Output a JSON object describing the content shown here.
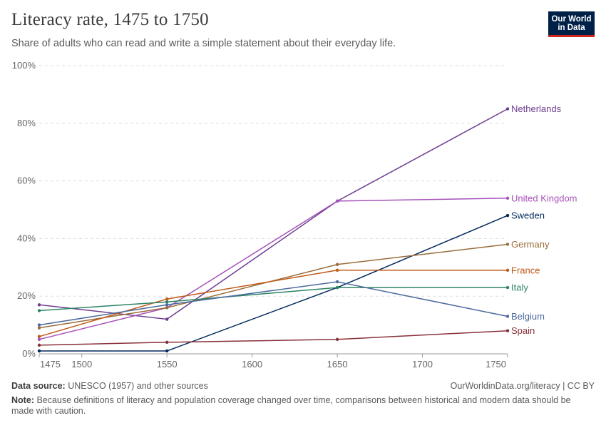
{
  "header": {
    "title": "Literacy rate, 1475 to 1750",
    "subtitle": "Share of adults who can read and write a simple statement about their everyday life.",
    "logo_line1": "Our World",
    "logo_line2": "in Data"
  },
  "footer": {
    "source_label": "Data source:",
    "source_text": "UNESCO (1957) and other sources",
    "credit": "OurWorldinData.org/literacy | CC BY",
    "note_label": "Note:",
    "note_text": "Because definitions of literacy and population coverage changed over time, comparisons between historical and modern data should be made with caution."
  },
  "chart_data": {
    "type": "line",
    "title": "Literacy rate, 1475 to 1750",
    "subtitle": "Share of adults who can read and write a simple statement about their everyday life.",
    "xlim": [
      1475,
      1750
    ],
    "ylim": [
      0,
      100
    ],
    "x_ticks": [
      1475,
      1500,
      1550,
      1600,
      1650,
      1700,
      1750
    ],
    "y_ticks": [
      0,
      20,
      40,
      60,
      80,
      100
    ],
    "y_tick_labels": [
      "0%",
      "20%",
      "40%",
      "60%",
      "80%",
      "100%"
    ],
    "grid": "horizontal dashed",
    "legend": "labels at line ends (right)",
    "series": [
      {
        "name": "Netherlands",
        "color": "#6d3e91",
        "points": [
          [
            1475,
            17
          ],
          [
            1550,
            12
          ],
          [
            1650,
            53
          ],
          [
            1750,
            85
          ]
        ]
      },
      {
        "name": "United Kingdom",
        "color": "#a652ba",
        "points": [
          [
            1475,
            5
          ],
          [
            1550,
            16
          ],
          [
            1650,
            53
          ],
          [
            1750,
            54
          ]
        ]
      },
      {
        "name": "Sweden",
        "color": "#00295b",
        "points": [
          [
            1475,
            1
          ],
          [
            1550,
            1
          ],
          [
            1650,
            23
          ],
          [
            1750,
            48
          ]
        ]
      },
      {
        "name": "Germany",
        "color": "#996d39",
        "points": [
          [
            1475,
            9
          ],
          [
            1550,
            16
          ],
          [
            1650,
            31
          ],
          [
            1750,
            38
          ]
        ]
      },
      {
        "name": "France",
        "color": "#c05917",
        "points": [
          [
            1475,
            6
          ],
          [
            1550,
            19
          ],
          [
            1650,
            29
          ],
          [
            1750,
            29
          ]
        ]
      },
      {
        "name": "Italy",
        "color": "#2c8465",
        "points": [
          [
            1475,
            15
          ],
          [
            1550,
            18
          ],
          [
            1650,
            23
          ],
          [
            1750,
            23
          ]
        ]
      },
      {
        "name": "Belgium",
        "color": "#4c6a9c",
        "points": [
          [
            1475,
            10
          ],
          [
            1550,
            17
          ],
          [
            1650,
            25
          ],
          [
            1750,
            13
          ]
        ]
      },
      {
        "name": "Spain",
        "color": "#883039",
        "points": [
          [
            1475,
            3
          ],
          [
            1550,
            4
          ],
          [
            1650,
            5
          ],
          [
            1750,
            8
          ]
        ]
      }
    ]
  }
}
